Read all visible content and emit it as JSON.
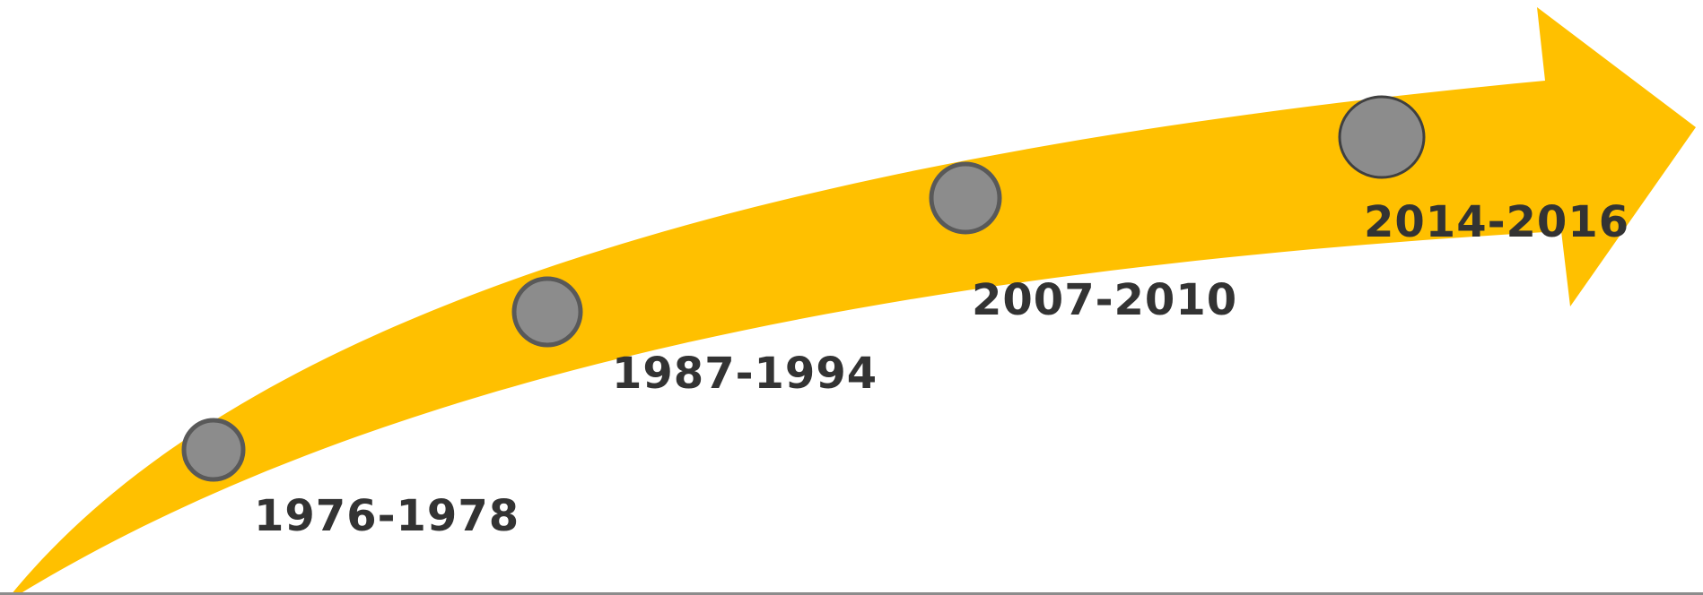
{
  "timeline": {
    "colors": {
      "arrow": "#FFC000",
      "marker_fill": "#8c8c8c",
      "marker_stroke": "#595959",
      "label_text": "#333333"
    },
    "milestones": [
      {
        "label": "1976-1978"
      },
      {
        "label": "1987-1994"
      },
      {
        "label": "2007-2010"
      },
      {
        "label": "2014-2016"
      }
    ]
  }
}
